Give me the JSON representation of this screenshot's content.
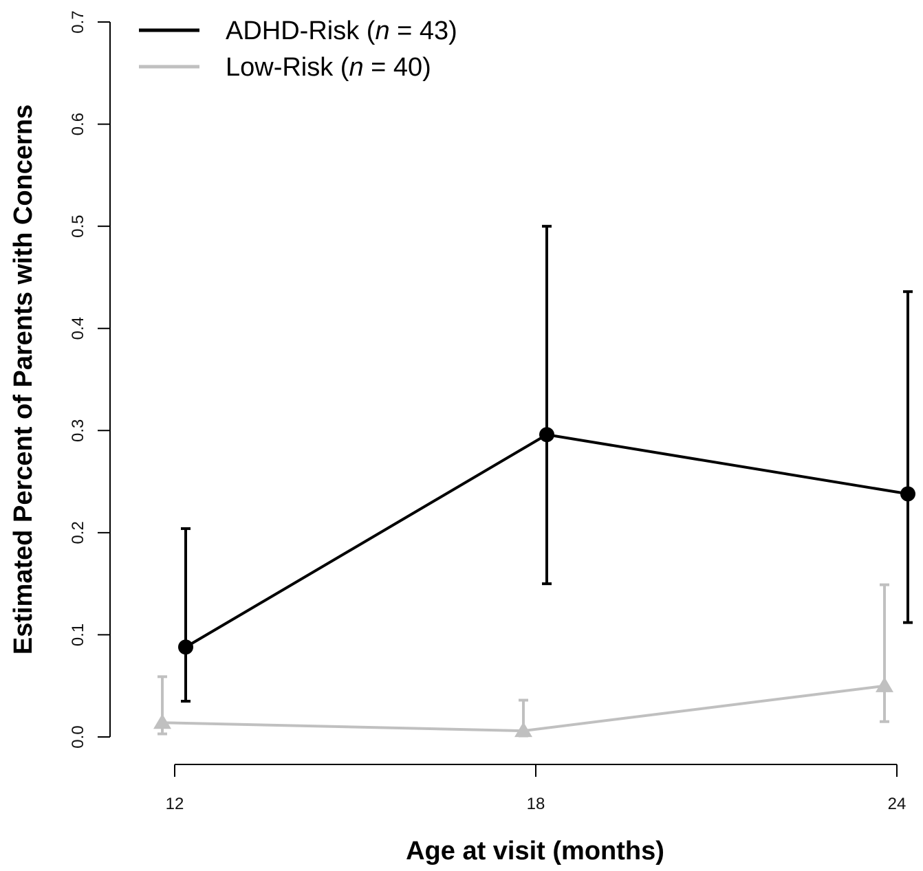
{
  "chart_data": {
    "type": "line",
    "xlabel": "Age at visit (months)",
    "ylabel": "Estimated Percent of Parents with Concerns",
    "x": [
      12,
      18,
      24
    ],
    "x_ticks": [
      "12",
      "18",
      "24"
    ],
    "y_ticks": [
      "0.0",
      "0.1",
      "0.2",
      "0.3",
      "0.4",
      "0.5",
      "0.6",
      "0.7"
    ],
    "ylim": [
      0,
      0.7
    ],
    "grid": false,
    "legend_position": "top-left",
    "series": [
      {
        "name": "ADHD-Risk",
        "legend_label_prefix": "ADHD-Risk (",
        "legend_label_n": "n",
        "legend_label_suffix": " = 43)",
        "color": "#000000",
        "marker": "circle",
        "values": [
          0.088,
          0.296,
          0.238
        ],
        "lower": [
          0.035,
          0.15,
          0.112
        ],
        "upper": [
          0.204,
          0.5,
          0.436
        ]
      },
      {
        "name": "Low-Risk",
        "legend_label_prefix": "Low-Risk (",
        "legend_label_n": "n",
        "legend_label_suffix": " = 40)",
        "color": "#c0c0c0",
        "marker": "triangle",
        "values": [
          0.014,
          0.006,
          0.05
        ],
        "lower": [
          0.003,
          0.001,
          0.015
        ],
        "upper": [
          0.059,
          0.036,
          0.149
        ]
      }
    ]
  }
}
